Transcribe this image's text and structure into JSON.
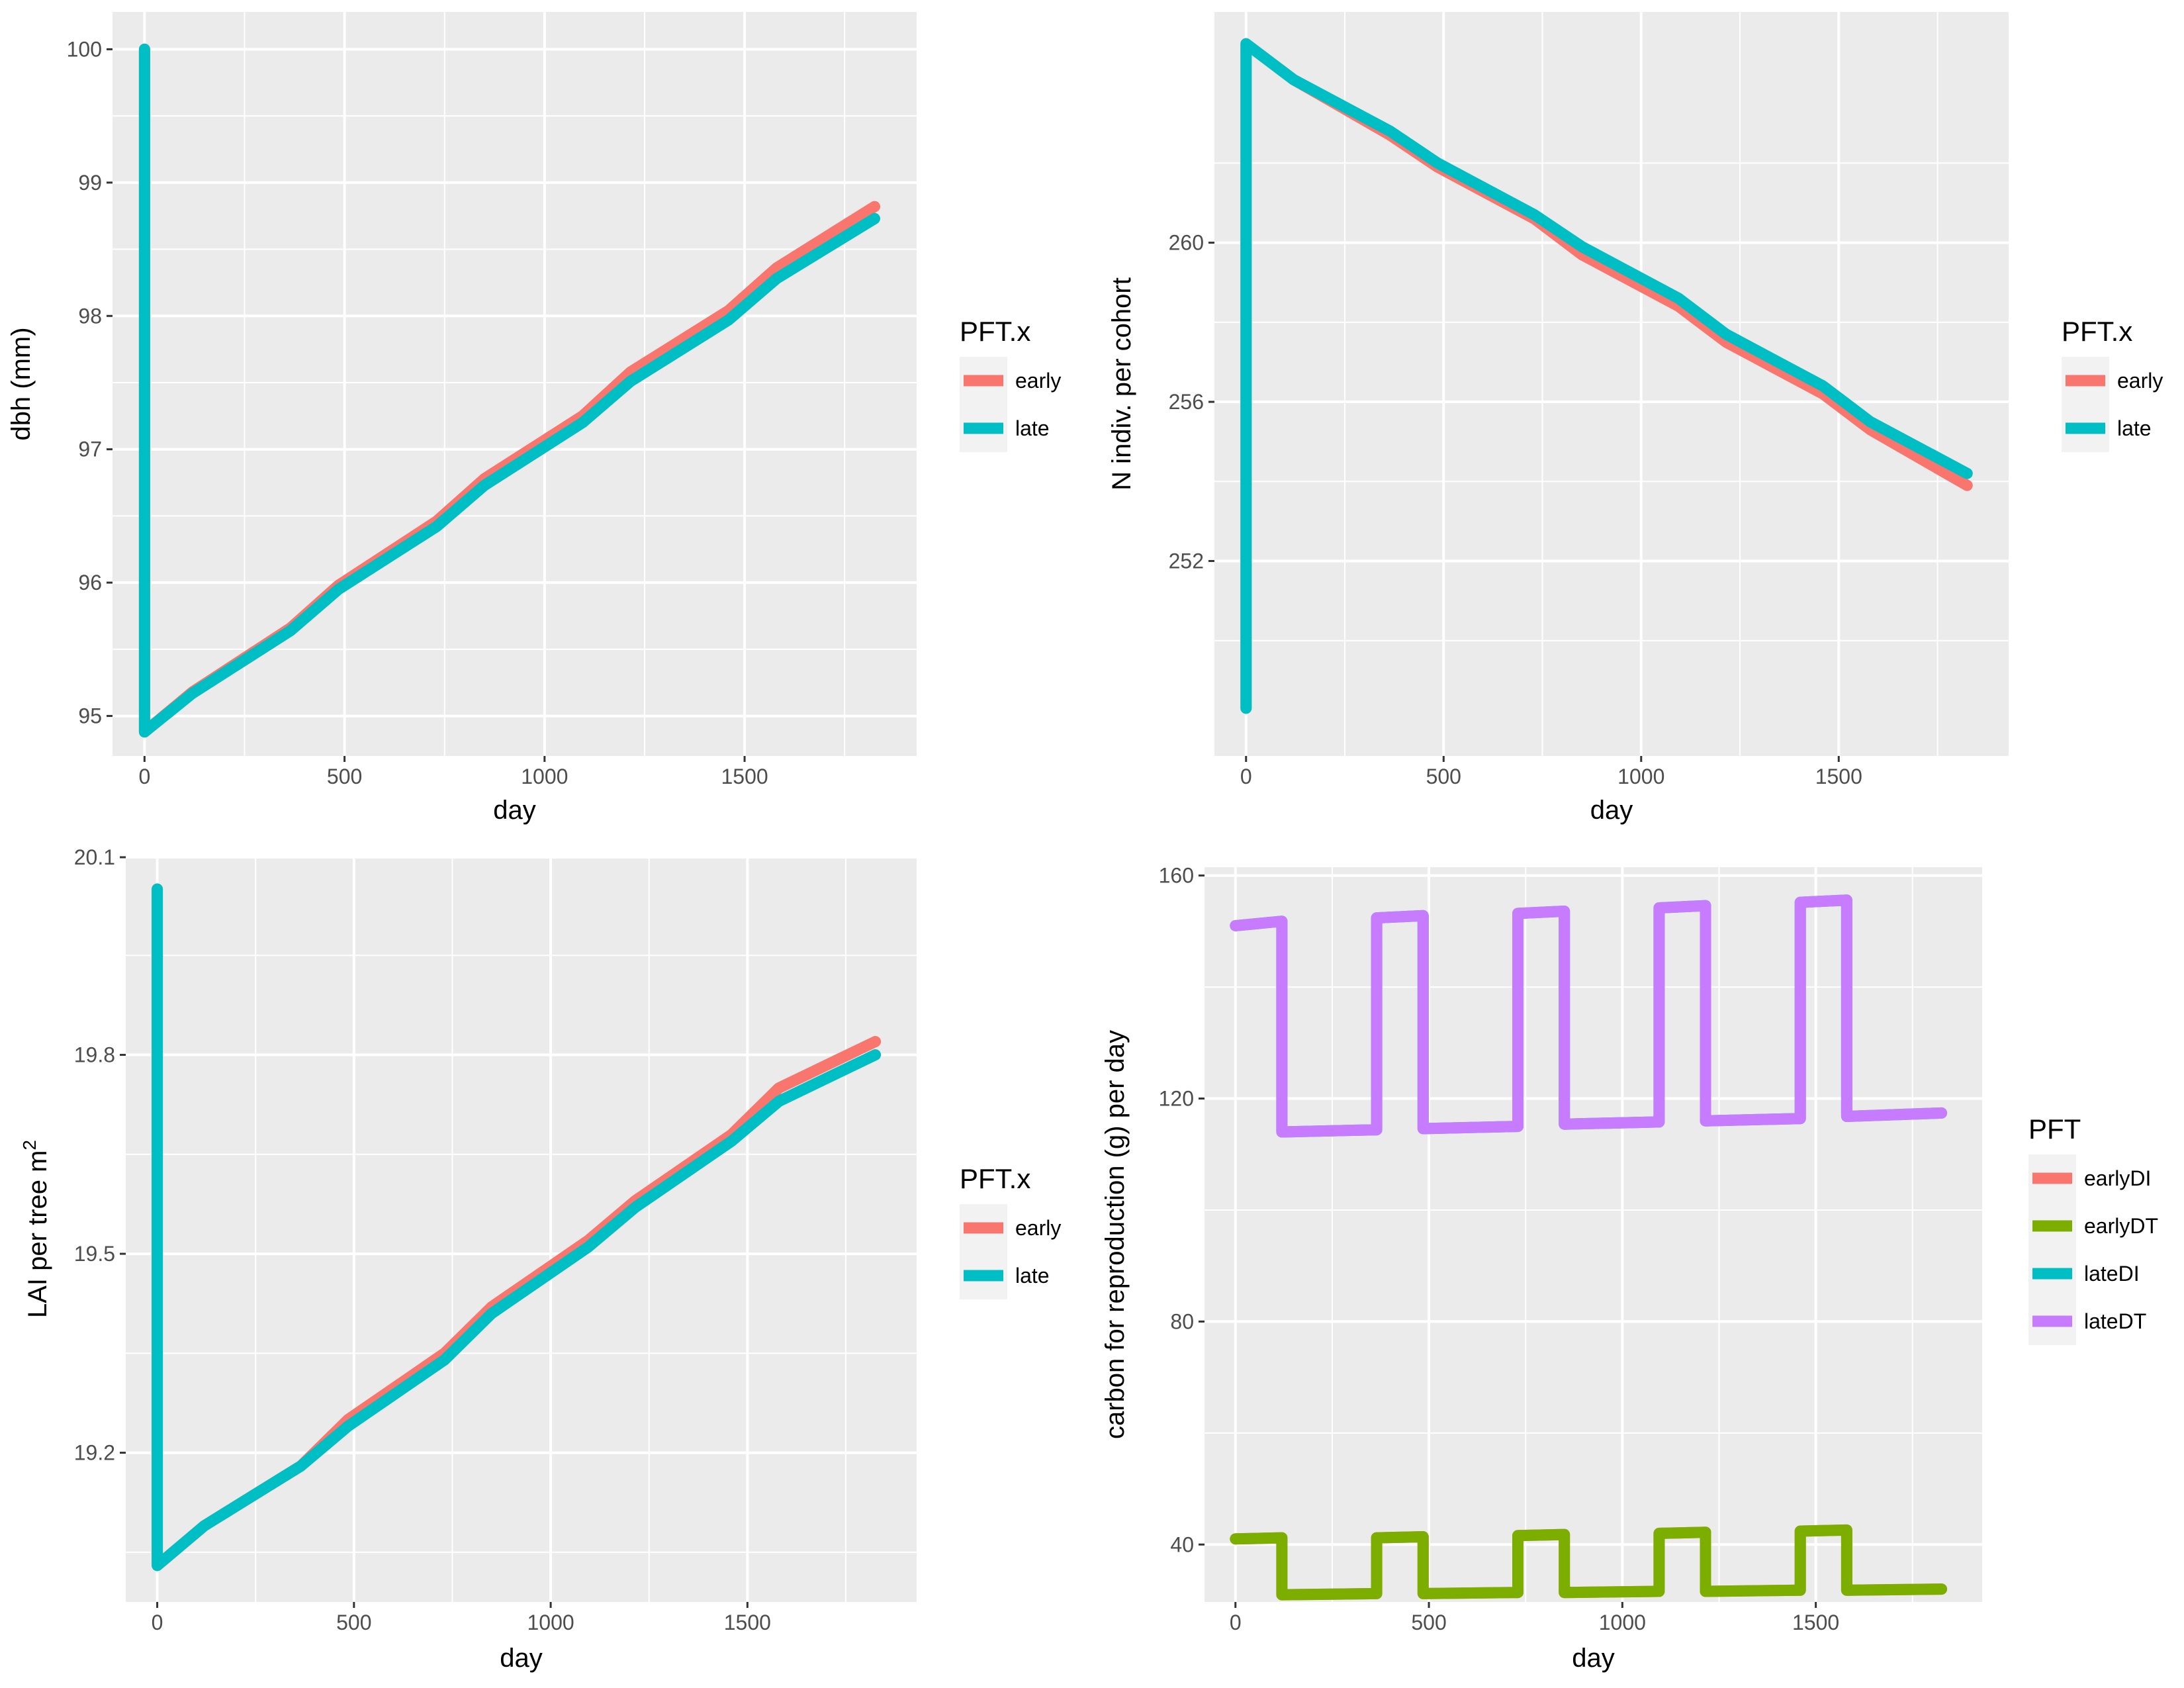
{
  "chart_data": [
    {
      "type": "line",
      "xlabel": "day",
      "ylabel": "dbh (mm)",
      "xlim": [
        -80,
        1930
      ],
      "ylim": [
        94.7,
        100.28
      ],
      "xticks": [
        0,
        500,
        1000,
        1500
      ],
      "yticks": [
        95,
        96,
        97,
        98,
        99,
        100
      ],
      "legend": {
        "title": "PFT.x",
        "position": "right"
      },
      "series": [
        {
          "name": "early",
          "color": "#F8766D",
          "x": [
            0,
            0,
            120,
            365,
            485,
            730,
            850,
            1095,
            1215,
            1460,
            1580,
            1825
          ],
          "y": [
            100,
            94.88,
            95.18,
            95.66,
            95.98,
            96.46,
            96.78,
            97.25,
            97.58,
            98.04,
            98.36,
            98.82
          ]
        },
        {
          "name": "late",
          "color": "#00BFC4",
          "x": [
            0,
            0,
            120,
            365,
            485,
            730,
            850,
            1095,
            1215,
            1460,
            1580,
            1825
          ],
          "y": [
            100,
            94.88,
            95.17,
            95.64,
            95.95,
            96.42,
            96.73,
            97.2,
            97.51,
            97.97,
            98.28,
            98.73
          ]
        }
      ]
    },
    {
      "type": "line",
      "xlabel": "day",
      "ylabel": "N indiv. per cohort",
      "xlim": [
        -80,
        1930
      ],
      "ylim": [
        247.1,
        265.8
      ],
      "xticks": [
        0,
        500,
        1000,
        1500
      ],
      "yticks": [
        252,
        256,
        260
      ],
      "legend": {
        "title": "PFT.x",
        "position": "right"
      },
      "series": [
        {
          "name": "early",
          "color": "#F8766D",
          "x": [
            0,
            0,
            120,
            365,
            485,
            730,
            850,
            1095,
            1215,
            1460,
            1580,
            1825
          ],
          "y": [
            248.3,
            265.0,
            264.1,
            262.7,
            261.9,
            260.6,
            259.7,
            258.4,
            257.5,
            256.2,
            255.3,
            253.9
          ]
        },
        {
          "name": "late",
          "color": "#00BFC4",
          "x": [
            0,
            0,
            120,
            365,
            485,
            730,
            850,
            1095,
            1215,
            1460,
            1580,
            1825
          ],
          "y": [
            248.3,
            265.0,
            264.1,
            262.8,
            262.0,
            260.7,
            259.9,
            258.6,
            257.7,
            256.4,
            255.5,
            254.2
          ]
        }
      ]
    },
    {
      "type": "line",
      "xlabel": "day",
      "ylabel": "LAI per tree m",
      "ylabel_sup": "2",
      "xlim": [
        -80,
        1930
      ],
      "ylim": [
        18.975,
        20.1
      ],
      "xticks": [
        0,
        500,
        1000,
        1500
      ],
      "yticks": [
        19.2,
        19.5,
        19.8
      ],
      "ytick_extra": "20.1",
      "legend": {
        "title": "PFT.x",
        "position": "right"
      },
      "series": [
        {
          "name": "early",
          "color": "#F8766D",
          "x": [
            0,
            0,
            120,
            365,
            485,
            730,
            850,
            1095,
            1215,
            1460,
            1580,
            1825
          ],
          "y": [
            20.05,
            19.03,
            19.09,
            19.18,
            19.25,
            19.35,
            19.42,
            19.52,
            19.58,
            19.68,
            19.75,
            19.82
          ]
        },
        {
          "name": "late",
          "color": "#00BFC4",
          "x": [
            0,
            0,
            120,
            365,
            485,
            730,
            850,
            1095,
            1215,
            1460,
            1580,
            1825
          ],
          "y": [
            20.05,
            19.03,
            19.09,
            19.18,
            19.24,
            19.34,
            19.41,
            19.51,
            19.57,
            19.67,
            19.73,
            19.8
          ]
        }
      ]
    },
    {
      "type": "line",
      "xlabel": "day",
      "ylabel": "carbon for reproduction (g) per day",
      "xlim": [
        -80,
        1930
      ],
      "ylim": [
        29.7,
        161.5
      ],
      "xticks": [
        0,
        500,
        1000,
        1500
      ],
      "yticks": [
        40,
        80,
        120,
        160
      ],
      "legend": {
        "title": "PFT",
        "position": "right"
      },
      "series": [
        {
          "name": "earlyDI",
          "color": "#F8766D",
          "x": [
            0,
            120,
            120,
            365,
            365,
            485,
            485,
            730,
            730,
            850,
            850,
            1095,
            1095,
            1215,
            1215,
            1460,
            1460,
            1580,
            1580,
            1825
          ],
          "y": [
            41,
            41.2,
            31,
            31.2,
            41.2,
            41.4,
            31.2,
            31.4,
            41.6,
            41.8,
            31.4,
            31.6,
            42.0,
            42.2,
            31.6,
            31.8,
            42.4,
            42.6,
            31.8,
            32.0
          ]
        },
        {
          "name": "earlyDT",
          "color": "#7CAE00",
          "x": [
            0,
            120,
            120,
            365,
            365,
            485,
            485,
            730,
            730,
            850,
            850,
            1095,
            1095,
            1215,
            1215,
            1460,
            1460,
            1580,
            1580,
            1825
          ],
          "y": [
            41,
            41.2,
            31,
            31.2,
            41.2,
            41.4,
            31.2,
            31.4,
            41.6,
            41.8,
            31.4,
            31.6,
            42.0,
            42.2,
            31.6,
            31.8,
            42.4,
            42.6,
            31.8,
            32.0
          ]
        },
        {
          "name": "lateDI",
          "color": "#00BFC4",
          "x": [
            0,
            120,
            120,
            365,
            365,
            485,
            485,
            730,
            730,
            850,
            850,
            1095,
            1095,
            1215,
            1215,
            1460,
            1460,
            1580,
            1580,
            1825
          ],
          "y": [
            151,
            151.8,
            114,
            114.4,
            152.4,
            152.8,
            114.6,
            115.0,
            153.2,
            153.6,
            115.4,
            115.8,
            154.2,
            154.6,
            116.0,
            116.4,
            155.2,
            155.6,
            116.8,
            117.4
          ]
        },
        {
          "name": "lateDT",
          "color": "#C77CFF",
          "x": [
            0,
            120,
            120,
            365,
            365,
            485,
            485,
            730,
            730,
            850,
            850,
            1095,
            1095,
            1215,
            1215,
            1460,
            1460,
            1580,
            1580,
            1825
          ],
          "y": [
            151,
            151.8,
            114,
            114.4,
            152.4,
            152.8,
            114.6,
            115.0,
            153.2,
            153.6,
            115.4,
            115.8,
            154.2,
            154.6,
            116.0,
            116.4,
            155.2,
            155.6,
            116.8,
            117.4
          ]
        }
      ]
    }
  ]
}
